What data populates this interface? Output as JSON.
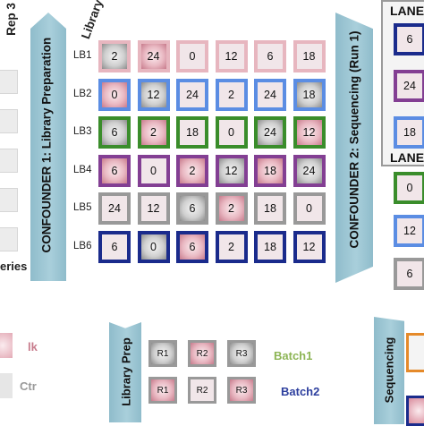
{
  "left_header": "Rep 3",
  "left_footer": "eries",
  "library_header": "Library",
  "confounder1": "CONFOUNDER 1: Library Preparation",
  "confounder2": "CONFOUNDER 2: Sequencing (Run 1)",
  "lane_title_1": "LANE",
  "lane_title_2": "LANE",
  "colors": {
    "pink": "#e7b6bf",
    "blue": "#5b8de3",
    "green": "#3a8d2b",
    "purple": "#833f93",
    "lavender": "#c6aec9",
    "navy": "#1a2b8c",
    "banner": "#9fc8d5"
  },
  "matrix": {
    "rows": [
      {
        "label": "LB1",
        "cells": [
          {
            "value": "2",
            "fill": "gray",
            "border": "pink"
          },
          {
            "value": "24",
            "fill": "red",
            "border": "pink"
          },
          {
            "value": "0",
            "fill": "light",
            "border": "pink"
          },
          {
            "value": "12",
            "fill": "light",
            "border": "pink"
          },
          {
            "value": "6",
            "fill": "light",
            "border": "pink"
          },
          {
            "value": "18",
            "fill": "light",
            "border": "pink"
          }
        ]
      },
      {
        "label": "LB2",
        "cells": [
          {
            "value": "0",
            "fill": "red",
            "border": "blue"
          },
          {
            "value": "12",
            "fill": "gray",
            "border": "blue"
          },
          {
            "value": "24",
            "fill": "light",
            "border": "blue"
          },
          {
            "value": "2",
            "fill": "light",
            "border": "blue"
          },
          {
            "value": "24",
            "fill": "light",
            "border": "blue"
          },
          {
            "value": "18",
            "fill": "gray",
            "border": "blue"
          }
        ]
      },
      {
        "label": "LB3",
        "cells": [
          {
            "value": "6",
            "fill": "gray",
            "border": "green"
          },
          {
            "value": "2",
            "fill": "red",
            "border": "green"
          },
          {
            "value": "18",
            "fill": "light",
            "border": "green"
          },
          {
            "value": "0",
            "fill": "light",
            "border": "green"
          },
          {
            "value": "24",
            "fill": "gray",
            "border": "green"
          },
          {
            "value": "12",
            "fill": "red",
            "border": "green"
          }
        ]
      },
      {
        "label": "LB4",
        "cells": [
          {
            "value": "6",
            "fill": "red",
            "border": "purple"
          },
          {
            "value": "0",
            "fill": "light",
            "border": "purple"
          },
          {
            "value": "2",
            "fill": "red",
            "border": "purple"
          },
          {
            "value": "12",
            "fill": "gray",
            "border": "purple"
          },
          {
            "value": "18",
            "fill": "red",
            "border": "purple"
          },
          {
            "value": "24",
            "fill": "gray",
            "border": "purple"
          }
        ]
      },
      {
        "label": "LB5",
        "cells": [
          {
            "value": "24",
            "fill": "light",
            "border": "lavender"
          },
          {
            "value": "12",
            "fill": "light",
            "border": "lavender"
          },
          {
            "value": "6",
            "fill": "gray",
            "border": "lavender"
          },
          {
            "value": "2",
            "fill": "red",
            "border": "lavender"
          },
          {
            "value": "18",
            "fill": "light",
            "border": "lavender"
          },
          {
            "value": "0",
            "fill": "light",
            "border": "lavender"
          }
        ]
      },
      {
        "label": "LB6",
        "cells": [
          {
            "value": "6",
            "fill": "light",
            "border": "navy"
          },
          {
            "value": "0",
            "fill": "gray",
            "border": "navy"
          },
          {
            "value": "6",
            "fill": "red",
            "border": "navy"
          },
          {
            "value": "2",
            "fill": "light",
            "border": "navy"
          },
          {
            "value": "18",
            "fill": "light",
            "border": "navy"
          },
          {
            "value": "12",
            "fill": "light",
            "border": "navy"
          }
        ]
      }
    ]
  },
  "lane1_cells": [
    {
      "value": "6",
      "fill": "light",
      "border": "navy"
    },
    {
      "value": "24",
      "fill": "light",
      "border": "purple"
    },
    {
      "value": "18",
      "fill": "light",
      "border": "blue"
    }
  ],
  "lane2_cells": [
    {
      "value": "0",
      "fill": "light",
      "border": "green"
    },
    {
      "value": "12",
      "fill": "light",
      "border": "blue"
    },
    {
      "value": "6",
      "fill": "light",
      "border": "lavender"
    }
  ],
  "legend": {
    "lk_label": "lk",
    "ctr_label": "Ctr"
  },
  "library_prep": {
    "title": "Library Prep",
    "batch1": "Batch1",
    "batch2": "Batch2",
    "batch1_cells": [
      {
        "value": "R1",
        "fill": "gray",
        "border": "green"
      },
      {
        "value": "R2",
        "fill": "red",
        "border": "green"
      },
      {
        "value": "R3",
        "fill": "gray",
        "border": "green"
      }
    ],
    "batch2_cells": [
      {
        "value": "R1",
        "fill": "red",
        "border": "navy"
      },
      {
        "value": "R2",
        "fill": "light",
        "border": "navy"
      },
      {
        "value": "R3",
        "fill": "red",
        "border": "navy"
      }
    ]
  },
  "sequencing_label": "Sequencing"
}
